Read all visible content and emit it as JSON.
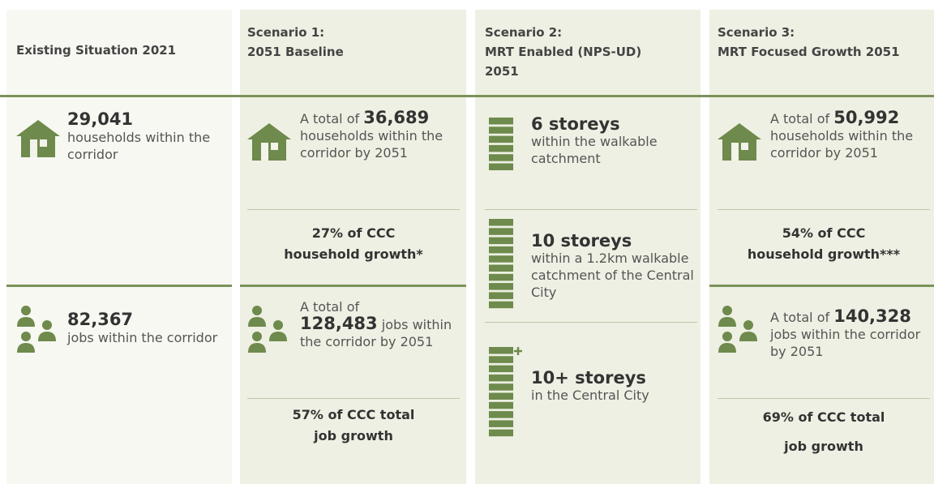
{
  "columns": [
    {
      "heading": [
        "Existing Situation 2021"
      ],
      "households": {
        "number": "29,041",
        "text": "households within the corridor"
      },
      "jobs": {
        "number": "82,367",
        "text": "jobs within the corridor"
      }
    },
    {
      "heading": [
        "Scenario 1:",
        "2051 Baseline"
      ],
      "households": {
        "prefix": "A total of",
        "number": "36,689",
        "text": "households within the corridor by 2051"
      },
      "household_share": [
        "27% of CCC",
        "household growth*"
      ],
      "jobs": {
        "prefix": "A total of",
        "number": "128,483",
        "suffix": "jobs",
        "text": "within the corridor by 2051"
      },
      "job_share": [
        "57% of CCC total",
        "job growth"
      ]
    },
    {
      "heading": [
        "Scenario 2:",
        "MRT Enabled (NPS-UD)",
        "2051"
      ],
      "storeys": [
        {
          "title": "6 storeys",
          "text": "within the walkable catchment"
        },
        {
          "title": "10 storeys",
          "text": "within a 1.2km walkable catchment of the Central City"
        },
        {
          "title": "10+ storeys",
          "text": "in the Central City"
        }
      ]
    },
    {
      "heading": [
        "Scenario 3:",
        "MRT Focused Growth 2051"
      ],
      "households": {
        "prefix": "A total of",
        "number": "50,992",
        "text": "households within the corridor by 2051"
      },
      "household_share": [
        "54% of CCC",
        "household growth***"
      ],
      "jobs": {
        "prefix": "A total of",
        "number": "140,328",
        "text": "jobs within the corridor by 2051"
      },
      "job_share": [
        "69% of CCC total",
        "job growth"
      ]
    }
  ]
}
